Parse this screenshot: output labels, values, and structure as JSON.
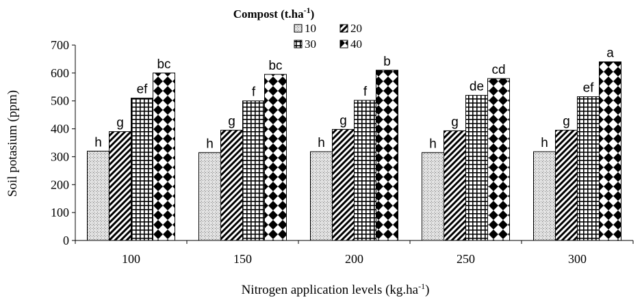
{
  "chart_data": {
    "type": "bar",
    "title": "",
    "legend_title": "Compost (t.ha-1)",
    "xlabel": "Nitrogen application levels (kg.ha-1)",
    "ylabel": "Soil potasium (ppm)",
    "ylim": [
      0,
      700
    ],
    "yticks": [
      0,
      100,
      200,
      300,
      400,
      500,
      600,
      700
    ],
    "categories": [
      "100",
      "150",
      "200",
      "250",
      "300"
    ],
    "series": [
      {
        "name": "10",
        "pattern": "crosshatch-dots",
        "values": [
          320,
          315,
          318,
          315,
          318
        ],
        "labels": [
          "h",
          "h",
          "h",
          "h",
          "h"
        ]
      },
      {
        "name": "20",
        "pattern": "diagonal",
        "values": [
          390,
          395,
          398,
          393,
          395
        ],
        "labels": [
          "g",
          "g",
          "g",
          "g",
          "g"
        ]
      },
      {
        "name": "30",
        "pattern": "grid",
        "values": [
          510,
          500,
          502,
          520,
          515
        ],
        "labels": [
          "ef",
          "f",
          "f",
          "de",
          "ef"
        ]
      },
      {
        "name": "40",
        "pattern": "diamond",
        "values": [
          600,
          595,
          610,
          580,
          640
        ],
        "labels": [
          "bc",
          "bc",
          "b",
          "cd",
          "a"
        ]
      }
    ],
    "legend_position": "top",
    "grid": false
  }
}
